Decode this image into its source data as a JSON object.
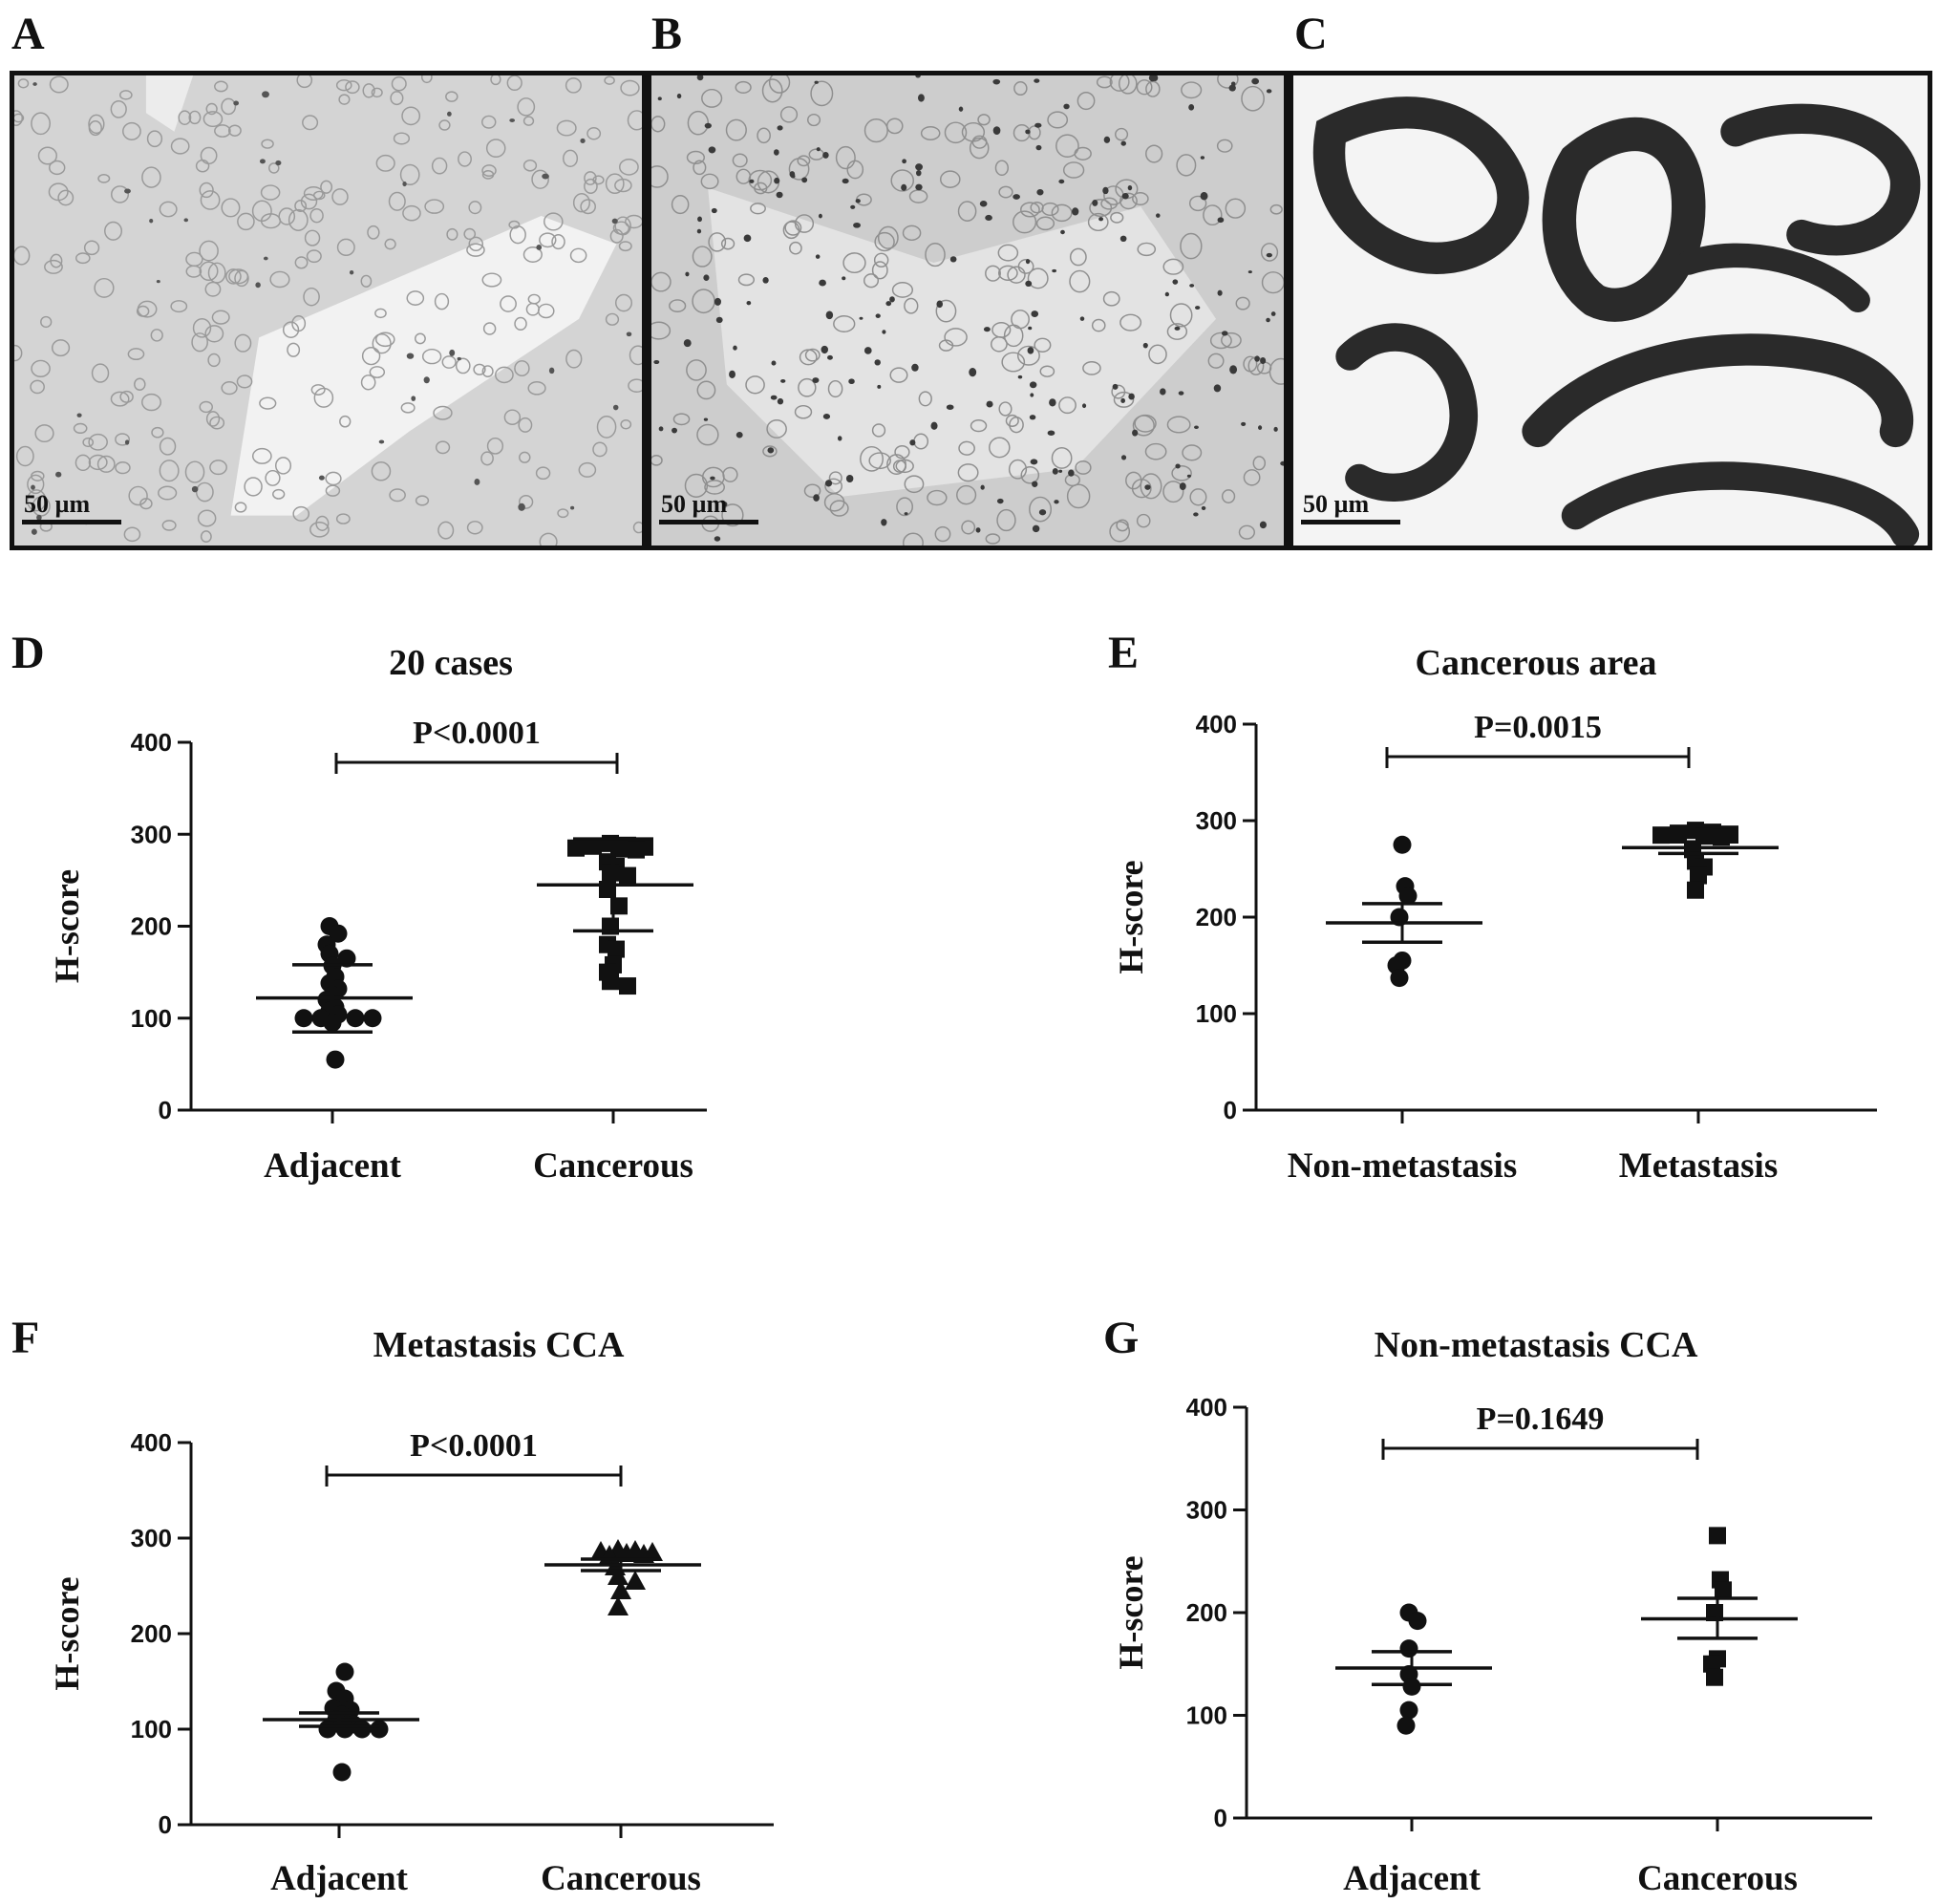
{
  "figure": {
    "micrograph_panels": [
      {
        "letter": "A",
        "scale_bar": "50 µm",
        "stain": "light"
      },
      {
        "letter": "B",
        "scale_bar": "50 µm",
        "stain": "medium"
      },
      {
        "letter": "C",
        "scale_bar": "50 µm",
        "stain": "strong"
      }
    ]
  },
  "chart_data": [
    {
      "panel": "D",
      "type": "scatter",
      "title": "20 cases",
      "xlabel": "",
      "ylabel": "H-score",
      "ylim": [
        0,
        400
      ],
      "yticks": [
        0,
        100,
        200,
        300,
        400
      ],
      "categories": [
        "Adjacent",
        "Cancerous"
      ],
      "significance": "P<0.0001",
      "series": [
        {
          "name": "",
          "marker": "circle",
          "category": 0,
          "mean": 122,
          "error": [
            85,
            158
          ],
          "values": [
            200,
            192,
            180,
            170,
            165,
            157,
            145,
            138,
            132,
            125,
            120,
            112,
            108,
            104,
            100,
            100,
            100,
            100,
            95,
            55
          ]
        },
        {
          "name": "",
          "marker": "square",
          "category": 1,
          "mean": 245,
          "error": [
            195,
            295
          ],
          "values": [
            290,
            288,
            287,
            286,
            285,
            284,
            283,
            270,
            265,
            258,
            255,
            240,
            222,
            200,
            180,
            175,
            158,
            150,
            140,
            135
          ]
        }
      ]
    },
    {
      "panel": "E",
      "type": "scatter",
      "title": "Cancerous area",
      "xlabel": "",
      "ylabel": "H-score",
      "ylim": [
        0,
        400
      ],
      "yticks": [
        0,
        100,
        200,
        300,
        400
      ],
      "categories": [
        "Non-metastasis",
        "Metastasis"
      ],
      "significance": "P=0.0015",
      "series": [
        {
          "name": "",
          "marker": "circle",
          "category": 0,
          "mean": 194,
          "error": [
            174,
            214
          ],
          "values": [
            275,
            232,
            222,
            200,
            155,
            150,
            137
          ]
        },
        {
          "name": "",
          "marker": "square",
          "category": 1,
          "mean": 272,
          "error": [
            266,
            278
          ],
          "values": [
            290,
            288,
            287,
            286,
            285,
            284,
            283,
            270,
            258,
            252,
            243,
            228
          ]
        }
      ]
    },
    {
      "panel": "F",
      "type": "scatter",
      "title": "Metastasis CCA",
      "xlabel": "",
      "ylabel": "H-score",
      "ylim": [
        0,
        400
      ],
      "yticks": [
        0,
        100,
        200,
        300,
        400
      ],
      "categories": [
        "Adjacent",
        "Cancerous"
      ],
      "significance": "P<0.0001",
      "series": [
        {
          "name": "",
          "marker": "circle",
          "category": 0,
          "mean": 110,
          "error": [
            103,
            117
          ],
          "values": [
            160,
            140,
            132,
            122,
            120,
            115,
            110,
            105,
            100,
            100,
            100,
            100,
            55
          ]
        },
        {
          "name": "",
          "marker": "triangle",
          "category": 1,
          "mean": 272,
          "error": [
            266,
            278
          ],
          "values": [
            288,
            287,
            286,
            285,
            284,
            283,
            282,
            270,
            260,
            255,
            245,
            228
          ]
        }
      ]
    },
    {
      "panel": "G",
      "type": "scatter",
      "title": "Non-metastasis CCA",
      "xlabel": "",
      "ylabel": "H-score",
      "ylim": [
        0,
        400
      ],
      "yticks": [
        0,
        100,
        200,
        300,
        400
      ],
      "categories": [
        "Adjacent",
        "Cancerous"
      ],
      "significance": "P=0.1649",
      "series": [
        {
          "name": "",
          "marker": "circle",
          "category": 0,
          "mean": 146,
          "error": [
            130,
            162
          ],
          "values": [
            200,
            192,
            165,
            140,
            128,
            105,
            90
          ]
        },
        {
          "name": "",
          "marker": "square",
          "category": 1,
          "mean": 194,
          "error": [
            175,
            214
          ],
          "values": [
            275,
            232,
            222,
            200,
            155,
            150,
            137
          ]
        }
      ]
    }
  ]
}
